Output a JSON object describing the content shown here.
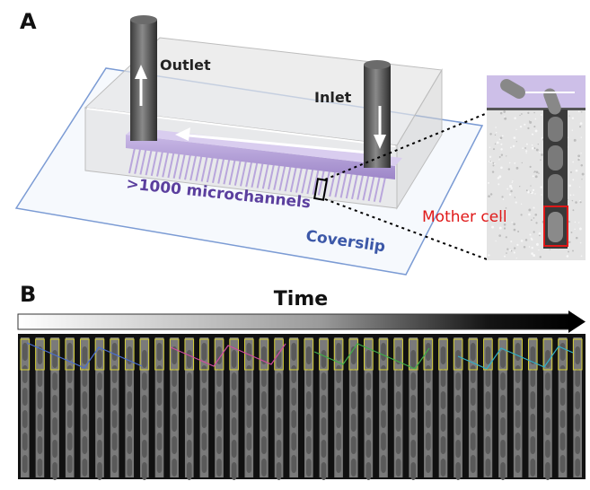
{
  "panel_a": {
    "label": "A",
    "outlet_label": "Outlet",
    "inlet_label": "Inlet",
    "microchannels_label": ">1000 microchannels",
    "coverslip_label": "Coverslip",
    "mother_cell_label": "Mother cell"
  },
  "panel_b": {
    "label": "B",
    "time_label": "Time"
  }
}
